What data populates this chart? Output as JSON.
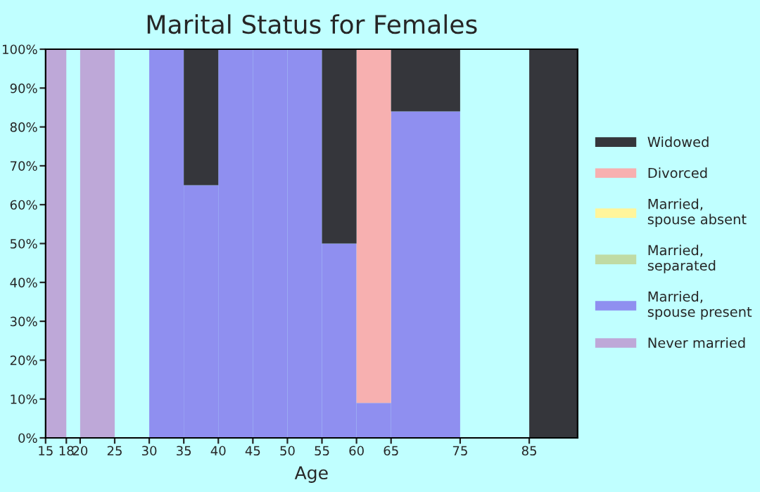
{
  "chart_data": {
    "type": "bar",
    "title": "Marital Status for Females",
    "xlabel": "Age",
    "x": [
      16.5,
      22.5,
      32.5,
      37.5,
      42.5,
      47.5,
      52.5,
      57.5,
      62.5,
      70,
      88.5
    ],
    "stacked": true,
    "series": [
      {
        "name": "Never married",
        "color": "#bea8d8",
        "values": [
          100,
          100,
          0,
          0,
          0,
          0,
          0,
          0,
          0,
          0,
          0
        ]
      },
      {
        "name": "Married,\nspouse present",
        "color": "#8f8ff0",
        "values": [
          0,
          0,
          100,
          65,
          100,
          100,
          100,
          50,
          9,
          84,
          0
        ]
      },
      {
        "name": "Married,\nseparated",
        "color": "#c0dba4",
        "values": [
          0,
          0,
          0,
          0,
          0,
          0,
          0,
          0,
          0,
          0,
          0
        ]
      },
      {
        "name": "Married,\nspouse absent",
        "color": "#fff59b",
        "values": [
          0,
          0,
          0,
          0,
          0,
          0,
          0,
          0,
          0,
          0,
          0
        ]
      },
      {
        "name": "Divorced",
        "color": "#f7b0b0",
        "values": [
          0,
          0,
          0,
          0,
          0,
          0,
          0,
          0,
          91,
          0,
          0
        ]
      },
      {
        "name": "Widowed",
        "color": "#35363b",
        "values": [
          0,
          0,
          0,
          35,
          0,
          0,
          0,
          50,
          0,
          16,
          100
        ]
      }
    ],
    "xlim": [
      15,
      92
    ],
    "xticks": [
      15,
      18,
      20,
      25,
      30,
      35,
      40,
      45,
      50,
      55,
      60,
      65,
      75,
      85
    ],
    "ylim": [
      0,
      100
    ],
    "yticks": [
      {
        "value": 0,
        "label": "0%"
      },
      {
        "value": 10,
        "label": "10%"
      },
      {
        "value": 20,
        "label": "20%"
      },
      {
        "value": 30,
        "label": "30%"
      },
      {
        "value": 40,
        "label": "40%"
      },
      {
        "value": 50,
        "label": "50%"
      },
      {
        "value": 60,
        "label": "60%"
      },
      {
        "value": 70,
        "label": "70%"
      },
      {
        "value": 80,
        "label": "80%"
      },
      {
        "value": 90,
        "label": "90%"
      },
      {
        "value": 100,
        "label": "100%"
      }
    ],
    "legend": "right",
    "grid": false
  }
}
